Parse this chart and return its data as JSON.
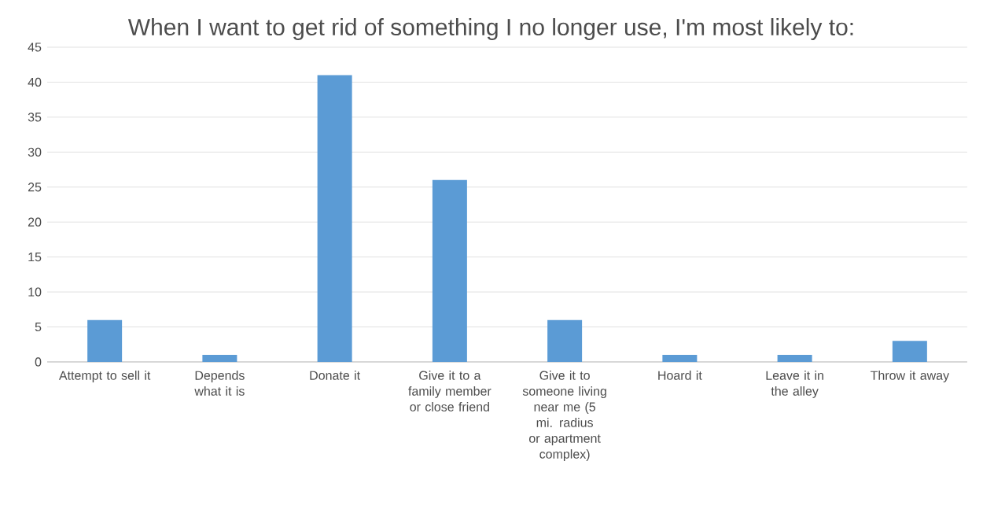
{
  "chart_data": {
    "type": "bar",
    "title": "When I want to get rid of something I  no longer use, I'm most likely to:",
    "categories": [
      "Attempt to sell it",
      "Depends what it is",
      "Donate it",
      "Give it to a family member or close friend",
      "Give it to someone living near me (5 mi. radius or apartment complex)",
      "Hoard it",
      "Leave it in the alley",
      "Throw it away"
    ],
    "values": [
      6,
      1,
      41,
      26,
      6,
      1,
      1,
      3
    ],
    "color": "#5b9bd5",
    "ylim": [
      0,
      45
    ],
    "yticks": [
      0,
      5,
      10,
      15,
      20,
      25,
      30,
      35,
      40,
      45
    ],
    "grid": "y"
  }
}
